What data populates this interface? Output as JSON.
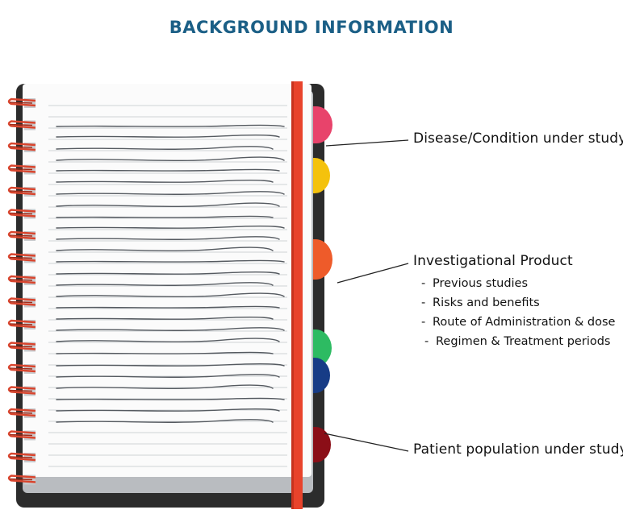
{
  "title": "BACKGROUND INFORMATION",
  "labels": {
    "disease": "Disease/Condition under study",
    "product": "Investigational Product",
    "patient": "Patient population under study"
  },
  "product_items": [
    "Previous studies",
    "Risks and benefits",
    "Route of Administration & dose",
    "Regimen & Treatment periods"
  ],
  "bullet": "-",
  "colors": {
    "title": "#1b5f86",
    "tab_pink": "#e8436b",
    "tab_yellow": "#f4c20d",
    "tab_orange": "#ee5b2a",
    "tab_green": "#2dbb62",
    "tab_blue": "#173c86",
    "tab_darkred": "#8b0e17",
    "elastic_band": "#e8432b",
    "cover": "#2c2c2c",
    "spiral": "#d9452e"
  }
}
